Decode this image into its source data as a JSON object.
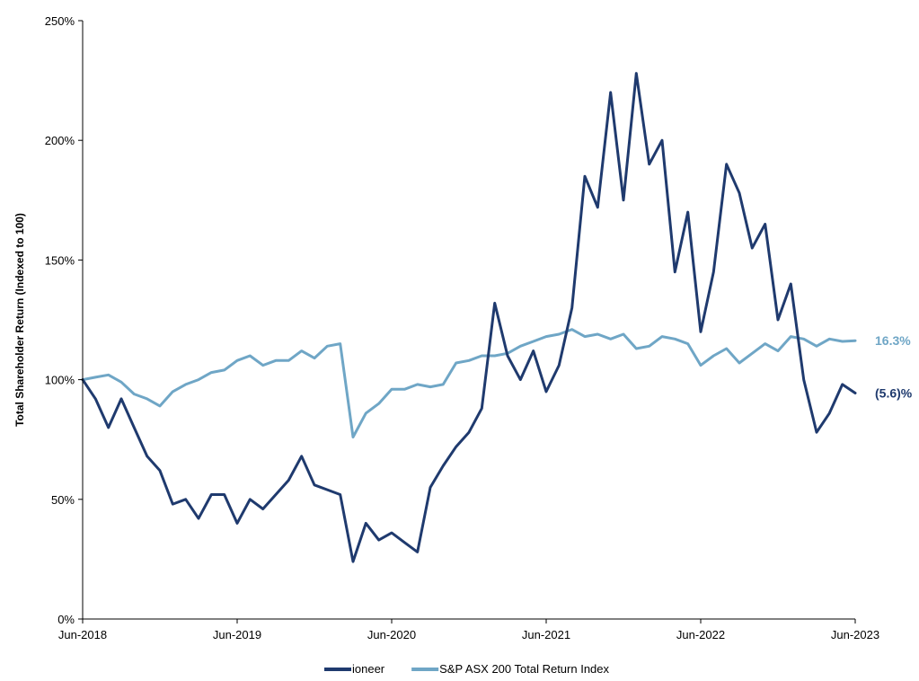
{
  "chart_data": {
    "type": "line",
    "title": "",
    "ylabel": "Total Shareholder Return (Indexed to 100)",
    "xlabel": "",
    "ylim": [
      0,
      250
    ],
    "xlim": [
      "2018-06",
      "2023-06"
    ],
    "y_ticks": [
      "0%",
      "50%",
      "100%",
      "150%",
      "200%",
      "250%"
    ],
    "x_ticks": [
      "Jun-2018",
      "Jun-2019",
      "Jun-2020",
      "Jun-2021",
      "Jun-2022",
      "Jun-2023"
    ],
    "grid": false,
    "legend_position": "bottom",
    "series": [
      {
        "name": "ioneer",
        "color": "#1f3a6e",
        "end_label": "(5.6)%",
        "points": [
          [
            "2018-06",
            100
          ],
          [
            "2018-07",
            92
          ],
          [
            "2018-08",
            80
          ],
          [
            "2018-09",
            92
          ],
          [
            "2018-10",
            80
          ],
          [
            "2018-11",
            68
          ],
          [
            "2018-12",
            62
          ],
          [
            "2019-01",
            48
          ],
          [
            "2019-02",
            50
          ],
          [
            "2019-03",
            42
          ],
          [
            "2019-04",
            52
          ],
          [
            "2019-05",
            52
          ],
          [
            "2019-06",
            40
          ],
          [
            "2019-07",
            50
          ],
          [
            "2019-08",
            46
          ],
          [
            "2019-09",
            52
          ],
          [
            "2019-10",
            58
          ],
          [
            "2019-11",
            68
          ],
          [
            "2019-12",
            56
          ],
          [
            "2020-01",
            54
          ],
          [
            "2020-02",
            52
          ],
          [
            "2020-03",
            24
          ],
          [
            "2020-04",
            40
          ],
          [
            "2020-05",
            33
          ],
          [
            "2020-06",
            36
          ],
          [
            "2020-07",
            32
          ],
          [
            "2020-08",
            28
          ],
          [
            "2020-09",
            55
          ],
          [
            "2020-10",
            64
          ],
          [
            "2020-11",
            72
          ],
          [
            "2020-12",
            78
          ],
          [
            "2021-01",
            88
          ],
          [
            "2021-02",
            132
          ],
          [
            "2021-03",
            110
          ],
          [
            "2021-04",
            100
          ],
          [
            "2021-05",
            112
          ],
          [
            "2021-06",
            95
          ],
          [
            "2021-07",
            106
          ],
          [
            "2021-08",
            130
          ],
          [
            "2021-09",
            185
          ],
          [
            "2021-10",
            172
          ],
          [
            "2021-11",
            220
          ],
          [
            "2021-12",
            175
          ],
          [
            "2022-01",
            228
          ],
          [
            "2022-02",
            190
          ],
          [
            "2022-03",
            200
          ],
          [
            "2022-04",
            145
          ],
          [
            "2022-05",
            170
          ],
          [
            "2022-06",
            120
          ],
          [
            "2022-07",
            145
          ],
          [
            "2022-08",
            190
          ],
          [
            "2022-09",
            178
          ],
          [
            "2022-10",
            155
          ],
          [
            "2022-11",
            165
          ],
          [
            "2022-12",
            125
          ],
          [
            "2023-01",
            140
          ],
          [
            "2023-02",
            100
          ],
          [
            "2023-03",
            78
          ],
          [
            "2023-04",
            86
          ],
          [
            "2023-05",
            98
          ],
          [
            "2023-06",
            94.4
          ]
        ]
      },
      {
        "name": "S&P ASX 200 Total Return Index",
        "color": "#6fa6c6",
        "end_label": "16.3%",
        "points": [
          [
            "2018-06",
            100
          ],
          [
            "2018-07",
            101
          ],
          [
            "2018-08",
            102
          ],
          [
            "2018-09",
            99
          ],
          [
            "2018-10",
            94
          ],
          [
            "2018-11",
            92
          ],
          [
            "2018-12",
            89
          ],
          [
            "2019-01",
            95
          ],
          [
            "2019-02",
            98
          ],
          [
            "2019-03",
            100
          ],
          [
            "2019-04",
            103
          ],
          [
            "2019-05",
            104
          ],
          [
            "2019-06",
            108
          ],
          [
            "2019-07",
            110
          ],
          [
            "2019-08",
            106
          ],
          [
            "2019-09",
            108
          ],
          [
            "2019-10",
            108
          ],
          [
            "2019-11",
            112
          ],
          [
            "2019-12",
            109
          ],
          [
            "2020-01",
            114
          ],
          [
            "2020-02",
            115
          ],
          [
            "2020-03",
            76
          ],
          [
            "2020-04",
            86
          ],
          [
            "2020-05",
            90
          ],
          [
            "2020-06",
            96
          ],
          [
            "2020-07",
            96
          ],
          [
            "2020-08",
            98
          ],
          [
            "2020-09",
            97
          ],
          [
            "2020-10",
            98
          ],
          [
            "2020-11",
            107
          ],
          [
            "2020-12",
            108
          ],
          [
            "2021-01",
            110
          ],
          [
            "2021-02",
            110
          ],
          [
            "2021-03",
            111
          ],
          [
            "2021-04",
            114
          ],
          [
            "2021-05",
            116
          ],
          [
            "2021-06",
            118
          ],
          [
            "2021-07",
            119
          ],
          [
            "2021-08",
            121
          ],
          [
            "2021-09",
            118
          ],
          [
            "2021-10",
            119
          ],
          [
            "2021-11",
            117
          ],
          [
            "2021-12",
            119
          ],
          [
            "2022-01",
            113
          ],
          [
            "2022-02",
            114
          ],
          [
            "2022-03",
            118
          ],
          [
            "2022-04",
            117
          ],
          [
            "2022-05",
            115
          ],
          [
            "2022-06",
            106
          ],
          [
            "2022-07",
            110
          ],
          [
            "2022-08",
            113
          ],
          [
            "2022-09",
            107
          ],
          [
            "2022-10",
            111
          ],
          [
            "2022-11",
            115
          ],
          [
            "2022-12",
            112
          ],
          [
            "2023-01",
            118
          ],
          [
            "2023-02",
            117
          ],
          [
            "2023-03",
            114
          ],
          [
            "2023-04",
            117
          ],
          [
            "2023-05",
            116
          ],
          [
            "2023-06",
            116.3
          ]
        ]
      }
    ]
  }
}
